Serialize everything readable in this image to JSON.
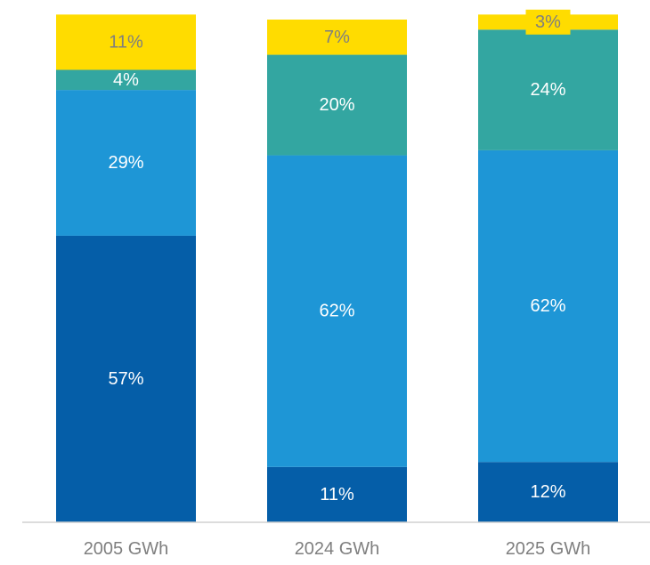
{
  "chart_data": {
    "type": "bar",
    "stacked": true,
    "categories": [
      "2005 GWh",
      "2024 GWh",
      "2025 GWh"
    ],
    "series": [
      {
        "values": [
          57,
          11,
          12
        ],
        "labels": [
          "57%",
          "11%",
          "12%"
        ],
        "color": "#055EA8",
        "label_color": "#ffffff"
      },
      {
        "values": [
          29,
          62,
          62
        ],
        "labels": [
          "29%",
          "62%",
          "62%"
        ],
        "color": "#1E96D6",
        "label_color": "#ffffff"
      },
      {
        "values": [
          4,
          20,
          24
        ],
        "labels": [
          "4%",
          "20%",
          "24%"
        ],
        "color": "#33A6A1",
        "label_color": "#ffffff"
      },
      {
        "values": [
          11,
          7,
          3
        ],
        "labels": [
          "11%",
          "7%",
          "3%"
        ],
        "color": "#FFDC00",
        "label_color": "#7f7f7f"
      }
    ],
    "ylim": [
      0,
      100
    ],
    "grid": false,
    "legend": "none",
    "axis_color": "#d0d0d0",
    "tick_label_color": "#7f7f7f"
  }
}
